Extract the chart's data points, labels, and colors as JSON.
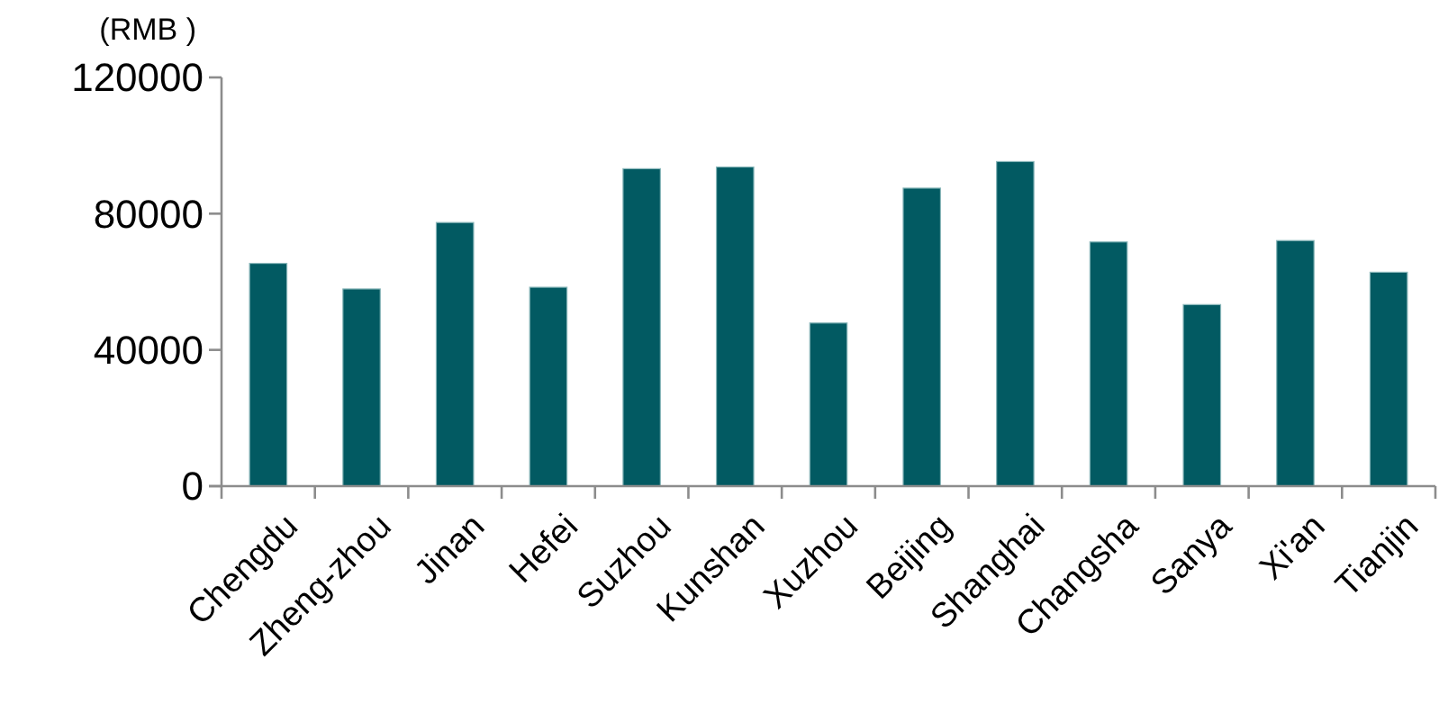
{
  "chart_data": {
    "type": "bar",
    "ylabel": "(RMB )",
    "categories": [
      "Chengdu",
      "Zheng-zhou",
      "Jinan",
      "Hefei",
      "Suzhou",
      "Kunshan",
      "Xuzhou",
      "Beijing",
      "Shanghai",
      "Changsha",
      "Sanya",
      "Xi'an",
      "Tianjin"
    ],
    "values": [
      65400,
      57900,
      77400,
      58400,
      93200,
      93700,
      47900,
      87500,
      95300,
      71700,
      53300,
      72100,
      62800
    ],
    "color": "#025a62",
    "ylim": [
      0,
      120000
    ],
    "yticks": [
      0,
      40000,
      80000,
      120000
    ],
    "grid": false
  }
}
